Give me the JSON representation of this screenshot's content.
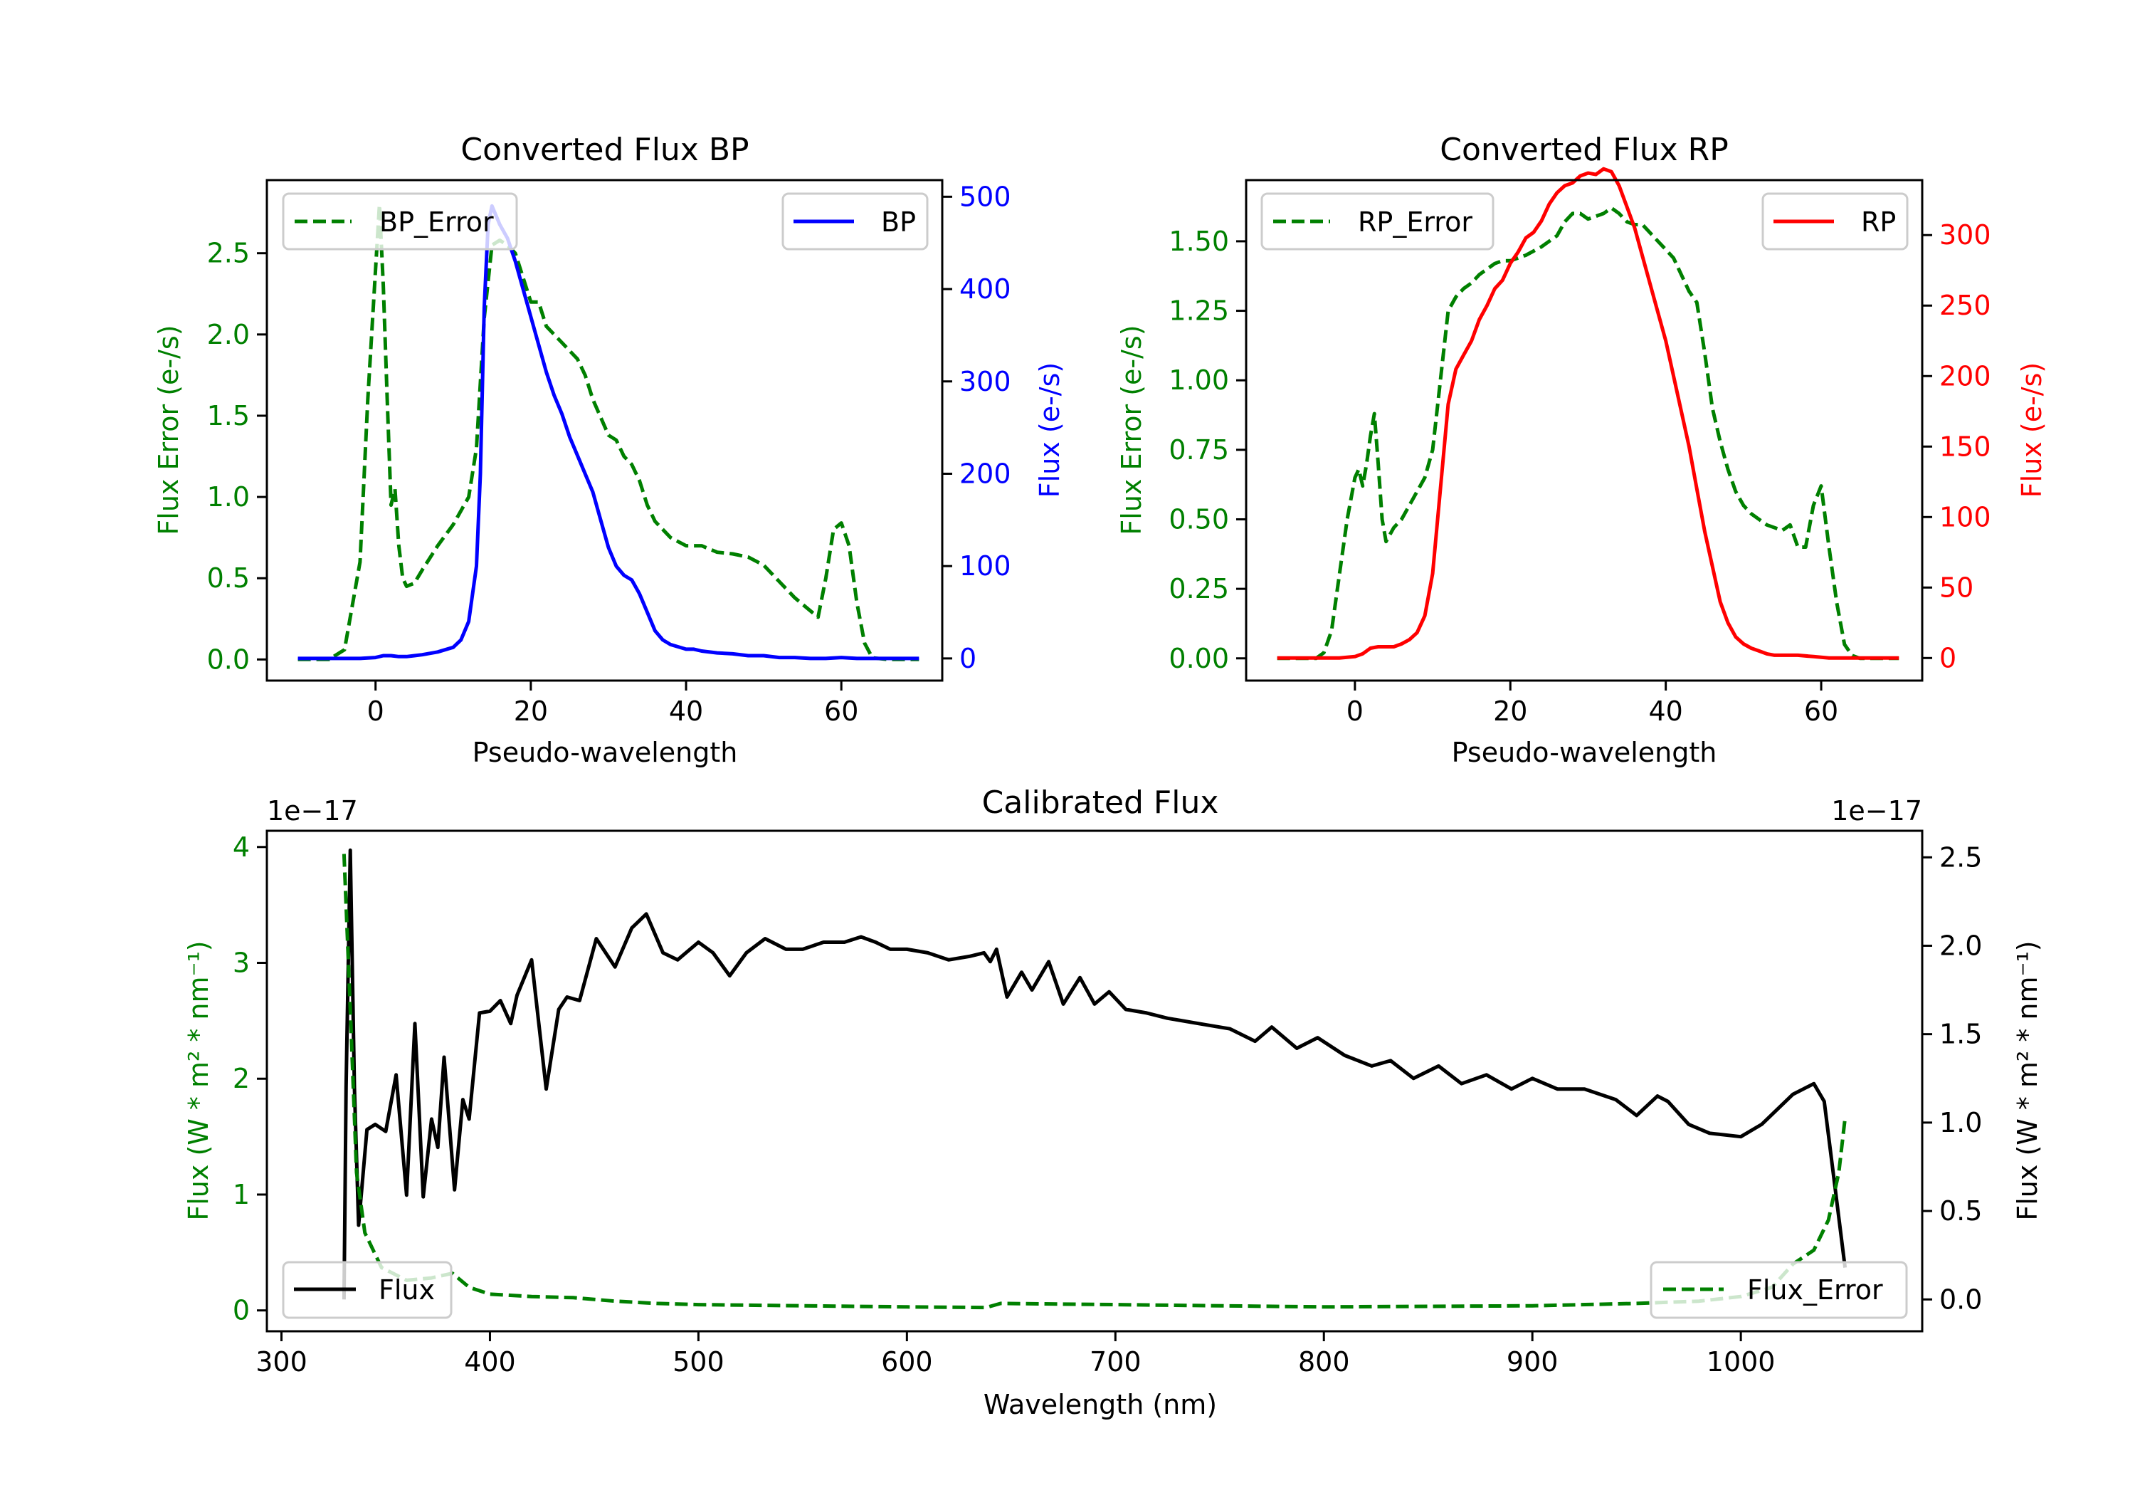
{
  "chart_data": [
    {
      "type": "line",
      "title": "Converted Flux BP",
      "xlabel": "Pseudo-wavelength",
      "ylabel_left": "Flux Error (e-/s)",
      "ylabel_right": "Flux (e-/s)",
      "xlim": [
        -14,
        73
      ],
      "ylim_left": [
        -0.13,
        2.95
      ],
      "ylim_right": [
        -24,
        518
      ],
      "xticks": [
        0,
        20,
        40,
        60
      ],
      "yticks_left": [
        0.0,
        0.5,
        1.0,
        1.5,
        2.0,
        2.5
      ],
      "yticks_left_labels": [
        "0.0",
        "0.5",
        "1.0",
        "1.5",
        "2.0",
        "2.5"
      ],
      "yticks_right": [
        0,
        100,
        200,
        300,
        400,
        500
      ],
      "colors": {
        "left_axis": "#008000",
        "right_axis": "#0000ff"
      },
      "legend_left": {
        "label": "BP_Error",
        "placement": "upper left"
      },
      "legend_right": {
        "label": "BP",
        "placement": "upper right"
      },
      "series": [
        {
          "name": "BP_Error",
          "axis": "left",
          "style": "dashed",
          "color": "#008000",
          "x": [
            -10,
            -6,
            -4,
            -2,
            -1,
            0,
            0.5,
            1,
            1.5,
            2,
            2.5,
            3,
            3.5,
            4,
            5,
            6,
            8,
            10,
            12,
            13,
            14,
            15,
            16,
            17,
            18,
            19,
            20,
            21,
            22,
            23,
            24,
            25,
            26,
            27,
            28,
            30,
            31,
            32,
            33,
            34,
            35,
            36,
            38,
            40,
            42,
            44,
            46,
            48,
            50,
            52,
            54,
            56,
            57,
            58,
            59,
            60,
            61,
            62,
            63,
            64,
            66,
            70
          ],
          "y": [
            0,
            0,
            0.06,
            0.6,
            1.6,
            2.4,
            2.8,
            2.3,
            1.6,
            0.95,
            1.05,
            0.7,
            0.5,
            0.45,
            0.47,
            0.55,
            0.7,
            0.83,
            1.0,
            1.3,
            2.1,
            2.55,
            2.58,
            2.55,
            2.5,
            2.35,
            2.2,
            2.2,
            2.05,
            2.0,
            1.95,
            1.9,
            1.85,
            1.75,
            1.6,
            1.38,
            1.35,
            1.25,
            1.2,
            1.1,
            0.95,
            0.85,
            0.75,
            0.7,
            0.7,
            0.66,
            0.65,
            0.63,
            0.58,
            0.48,
            0.38,
            0.3,
            0.26,
            0.5,
            0.8,
            0.84,
            0.7,
            0.35,
            0.1,
            0.01,
            0,
            0
          ]
        },
        {
          "name": "BP",
          "axis": "right",
          "style": "solid",
          "color": "#0000ff",
          "x": [
            -10,
            -5,
            -2,
            0,
            1,
            2,
            3,
            4,
            5,
            6,
            8,
            10,
            11,
            12,
            13,
            13.5,
            14,
            14.5,
            15,
            15.5,
            16,
            17,
            18,
            19,
            20,
            21,
            22,
            23,
            24,
            25,
            26,
            27,
            28,
            29,
            30,
            31,
            32,
            33,
            34,
            35,
            36,
            37,
            38,
            40,
            41,
            42,
            44,
            46,
            48,
            50,
            52,
            54,
            56,
            58,
            60,
            62,
            64,
            66,
            70
          ],
          "y": [
            0,
            0,
            0,
            1,
            3,
            3,
            2,
            2,
            3,
            4,
            7,
            12,
            20,
            40,
            100,
            200,
            380,
            470,
            490,
            480,
            470,
            455,
            430,
            400,
            370,
            340,
            310,
            285,
            265,
            240,
            220,
            200,
            180,
            150,
            120,
            100,
            90,
            85,
            70,
            50,
            30,
            20,
            15,
            10,
            10,
            8,
            6,
            5,
            3,
            3,
            1,
            1,
            0,
            0,
            1,
            0,
            0,
            0,
            0
          ]
        }
      ]
    },
    {
      "type": "line",
      "title": "Converted Flux RP",
      "xlabel": "Pseudo-wavelength",
      "ylabel_left": "Flux Error (e-/s)",
      "ylabel_right": "Flux (e-/s)",
      "xlim": [
        -14,
        73
      ],
      "ylim_left": [
        -0.08,
        1.72
      ],
      "ylim_right": [
        -16,
        339
      ],
      "xticks": [
        0,
        20,
        40,
        60
      ],
      "yticks_left": [
        0.0,
        0.25,
        0.5,
        0.75,
        1.0,
        1.25,
        1.5
      ],
      "yticks_left_labels": [
        "0.00",
        "0.25",
        "0.50",
        "0.75",
        "1.00",
        "1.25",
        "1.50"
      ],
      "yticks_right": [
        0,
        50,
        100,
        150,
        200,
        250,
        300
      ],
      "colors": {
        "left_axis": "#008000",
        "right_axis": "#ff0000"
      },
      "legend_left": {
        "label": "RP_Error",
        "placement": "upper left"
      },
      "legend_right": {
        "label": "RP",
        "placement": "upper right"
      },
      "series": [
        {
          "name": "RP_Error",
          "axis": "left",
          "style": "dashed",
          "color": "#008000",
          "x": [
            -10,
            -5,
            -4,
            -3,
            -2,
            -1,
            0,
            0.5,
            1,
            1.5,
            2,
            2.5,
            3,
            3.5,
            4,
            5,
            6,
            7,
            8,
            9,
            10,
            11,
            12,
            13,
            14,
            15,
            16,
            17,
            18,
            19,
            20,
            22,
            24,
            26,
            27,
            28,
            29,
            30,
            31,
            32,
            33,
            34,
            35,
            36,
            37,
            38,
            39,
            40,
            41,
            42,
            43,
            44,
            45,
            46,
            47,
            48,
            49,
            50,
            51,
            52,
            53,
            54,
            55,
            56,
            57,
            58,
            59,
            60,
            61,
            62,
            63,
            64,
            65,
            70
          ],
          "y": [
            0,
            0,
            0.02,
            0.1,
            0.3,
            0.5,
            0.65,
            0.68,
            0.62,
            0.7,
            0.8,
            0.88,
            0.7,
            0.5,
            0.42,
            0.47,
            0.5,
            0.55,
            0.6,
            0.65,
            0.75,
            1.0,
            1.25,
            1.3,
            1.33,
            1.35,
            1.38,
            1.4,
            1.42,
            1.43,
            1.43,
            1.45,
            1.48,
            1.52,
            1.57,
            1.6,
            1.6,
            1.58,
            1.59,
            1.6,
            1.62,
            1.6,
            1.57,
            1.56,
            1.56,
            1.53,
            1.5,
            1.47,
            1.44,
            1.38,
            1.32,
            1.28,
            1.1,
            0.9,
            0.78,
            0.68,
            0.6,
            0.55,
            0.52,
            0.5,
            0.48,
            0.47,
            0.46,
            0.48,
            0.4,
            0.4,
            0.55,
            0.62,
            0.4,
            0.2,
            0.05,
            0.01,
            0,
            0
          ]
        },
        {
          "name": "RP",
          "axis": "right",
          "style": "solid",
          "color": "#ff0000",
          "x": [
            -10,
            -5,
            -2,
            0,
            1,
            2,
            3,
            4,
            5,
            6,
            7,
            8,
            9,
            10,
            11,
            12,
            13,
            14,
            15,
            16,
            17,
            18,
            19,
            20,
            21,
            22,
            23,
            24,
            25,
            26,
            27,
            28,
            29,
            30,
            31,
            32,
            33,
            34,
            35,
            36,
            37,
            38,
            39,
            40,
            41,
            42,
            43,
            44,
            45,
            46,
            47,
            48,
            49,
            50,
            51,
            52,
            53,
            54,
            55,
            57,
            59,
            61,
            63,
            65,
            70
          ],
          "y": [
            0,
            0,
            0,
            1,
            3,
            7,
            8,
            8,
            8,
            10,
            13,
            18,
            30,
            60,
            120,
            180,
            205,
            215,
            225,
            240,
            250,
            262,
            268,
            280,
            288,
            298,
            302,
            310,
            322,
            330,
            335,
            337,
            342,
            344,
            343,
            347,
            345,
            335,
            320,
            305,
            285,
            265,
            245,
            225,
            200,
            175,
            150,
            120,
            90,
            65,
            40,
            25,
            15,
            10,
            7,
            5,
            3,
            2,
            2,
            2,
            1,
            0,
            0,
            0,
            0
          ]
        }
      ]
    },
    {
      "type": "line",
      "title": "Calibrated Flux",
      "xlabel": "Wavelength (nm)",
      "ylabel_left": "Flux (W * m² * nm⁻¹)",
      "ylabel_right": "Flux (W * m² * nm⁻¹)",
      "y_offset_left": "1e−17",
      "y_offset_right": "1e−17",
      "xlim": [
        293,
        1087
      ],
      "ylim_left": [
        -0.18,
        4.14
      ],
      "ylim_right": [
        -0.18,
        2.65
      ],
      "xticks": [
        300,
        400,
        500,
        600,
        700,
        800,
        900,
        1000
      ],
      "yticks_left": [
        0,
        1,
        2,
        3,
        4
      ],
      "yticks_right": [
        0.0,
        0.5,
        1.0,
        1.5,
        2.0,
        2.5
      ],
      "yticks_right_labels": [
        "0.0",
        "0.5",
        "1.0",
        "1.5",
        "2.0",
        "2.5"
      ],
      "colors": {
        "left_axis": "#008000",
        "right_axis": "#000000"
      },
      "legend_left": {
        "label": "Flux",
        "placement": "lower left"
      },
      "legend_right": {
        "label": "Flux_Error",
        "placement": "lower right"
      },
      "series": [
        {
          "name": "Flux",
          "axis": "right",
          "style": "solid",
          "color": "#000000",
          "unit_scale": "1e-17",
          "x": [
            330,
            331,
            333,
            335,
            337,
            341,
            345,
            350,
            355,
            360,
            364,
            368,
            372,
            375,
            378,
            383,
            387,
            390,
            395,
            400,
            405,
            410,
            413,
            420,
            427,
            433,
            437,
            443,
            451,
            460,
            468,
            475,
            483,
            490,
            500,
            507,
            515,
            523,
            532,
            542,
            550,
            560,
            570,
            578,
            585,
            592,
            600,
            610,
            620,
            630,
            637,
            640,
            643,
            648,
            655,
            660,
            668,
            675,
            683,
            690,
            697,
            705,
            715,
            725,
            740,
            755,
            767,
            775,
            787,
            797,
            810,
            823,
            832,
            843,
            855,
            866,
            878,
            890,
            900,
            912,
            925,
            940,
            950,
            960,
            965,
            975,
            985,
            1000,
            1010,
            1025,
            1030,
            1035,
            1040,
            1045,
            1050
          ],
          "y": [
            0.0,
            1.2,
            2.54,
            1.2,
            0.42,
            0.96,
            0.99,
            0.95,
            1.27,
            0.59,
            1.56,
            0.58,
            1.02,
            0.86,
            1.37,
            0.62,
            1.13,
            1.02,
            1.62,
            1.63,
            1.69,
            1.56,
            1.72,
            1.92,
            1.19,
            1.64,
            1.71,
            1.69,
            2.04,
            1.88,
            2.1,
            2.18,
            1.96,
            1.92,
            2.02,
            1.96,
            1.83,
            1.96,
            2.04,
            1.98,
            1.98,
            2.02,
            2.02,
            2.05,
            2.02,
            1.98,
            1.98,
            1.96,
            1.92,
            1.94,
            1.96,
            1.91,
            1.98,
            1.71,
            1.85,
            1.75,
            1.91,
            1.67,
            1.82,
            1.67,
            1.74,
            1.64,
            1.62,
            1.59,
            1.56,
            1.53,
            1.46,
            1.54,
            1.42,
            1.48,
            1.38,
            1.32,
            1.35,
            1.25,
            1.32,
            1.22,
            1.27,
            1.19,
            1.25,
            1.19,
            1.19,
            1.13,
            1.04,
            1.15,
            1.12,
            0.99,
            0.94,
            0.92,
            0.99,
            1.16,
            1.19,
            1.22,
            1.12,
            0.65,
            0.18
          ]
        },
        {
          "name": "Flux_Error",
          "axis": "left",
          "style": "dashed",
          "color": "#008000",
          "unit_scale": "1e-17",
          "x": [
            330,
            333,
            336,
            340,
            348,
            360,
            372,
            382,
            390,
            400,
            420,
            440,
            460,
            480,
            500,
            550,
            600,
            638,
            645,
            700,
            800,
            900,
            950,
            980,
            1000,
            1015,
            1025,
            1035,
            1042,
            1047,
            1050
          ],
          "y": [
            3.94,
            2.6,
            1.19,
            0.67,
            0.37,
            0.26,
            0.28,
            0.32,
            0.2,
            0.14,
            0.12,
            0.11,
            0.08,
            0.06,
            0.05,
            0.04,
            0.03,
            0.025,
            0.06,
            0.05,
            0.03,
            0.04,
            0.06,
            0.08,
            0.12,
            0.2,
            0.4,
            0.52,
            0.78,
            1.19,
            1.66
          ]
        }
      ]
    }
  ]
}
